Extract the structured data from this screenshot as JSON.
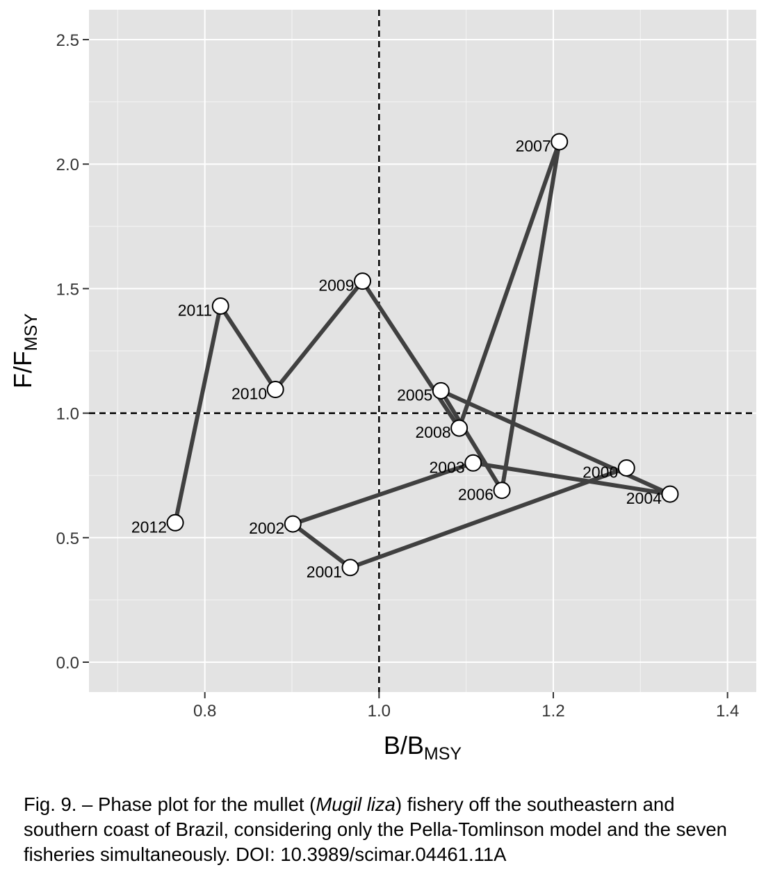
{
  "chart_data": {
    "type": "line",
    "xlabel": "B/B",
    "xlabel_sub": "MSY",
    "ylabel": "F/F",
    "ylabel_sub": "MSY",
    "xlim": [
      0.667,
      1.433
    ],
    "ylim": [
      -0.12,
      2.62
    ],
    "x_ticks": [
      0.8,
      1.0,
      1.2,
      1.4
    ],
    "x_tick_labels": [
      "0.8",
      "1.0",
      "1.2",
      "1.4"
    ],
    "y_ticks": [
      0.0,
      0.5,
      1.0,
      1.5,
      2.0,
      2.5
    ],
    "y_tick_labels": [
      "0.0",
      "0.5",
      "1.0",
      "1.5",
      "2.0",
      "2.5"
    ],
    "reference_lines": {
      "x": 1.0,
      "y": 1.0,
      "style": "dashed"
    },
    "grid": true,
    "background": "#e3e3e3",
    "line_color": "#404040",
    "points": [
      {
        "year": "2000",
        "x": 1.284,
        "y": 0.78
      },
      {
        "year": "2001",
        "x": 0.967,
        "y": 0.38
      },
      {
        "year": "2002",
        "x": 0.901,
        "y": 0.555
      },
      {
        "year": "2003",
        "x": 1.108,
        "y": 0.8
      },
      {
        "year": "2004",
        "x": 1.334,
        "y": 0.675
      },
      {
        "year": "2005",
        "x": 1.071,
        "y": 1.09
      },
      {
        "year": "2006",
        "x": 1.141,
        "y": 0.69
      },
      {
        "year": "2007",
        "x": 1.207,
        "y": 2.09
      },
      {
        "year": "2008",
        "x": 1.092,
        "y": 0.94
      },
      {
        "year": "2009",
        "x": 0.981,
        "y": 1.53
      },
      {
        "year": "2010",
        "x": 0.881,
        "y": 1.095
      },
      {
        "year": "2011",
        "x": 0.818,
        "y": 1.43
      },
      {
        "year": "2012",
        "x": 0.766,
        "y": 0.56
      }
    ]
  },
  "caption": {
    "prefix": "Fig. 9. – Phase plot for the mullet (",
    "species": "Mugil liza",
    "suffix": ") fishery off the southeastern and southern coast of Brazil, considering only the Pella-Tomlinson model and the seven fisheries simultaneously. DOI: 10.3989/scimar.04461.11A"
  }
}
